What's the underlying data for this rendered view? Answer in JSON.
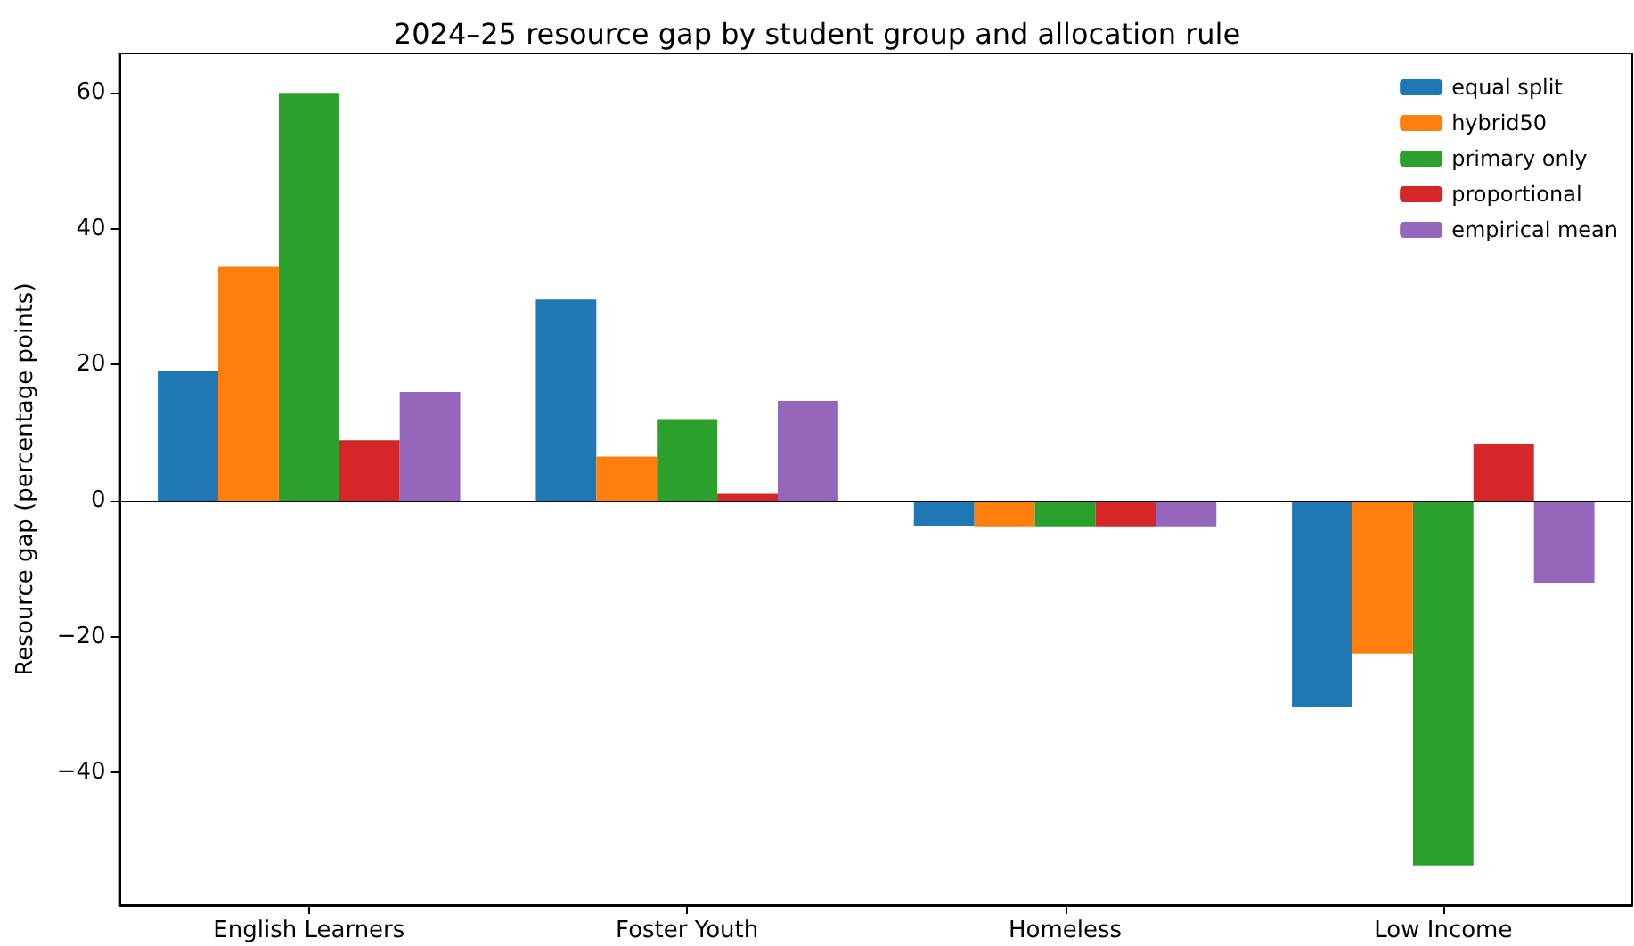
{
  "chart_data": {
    "type": "bar",
    "title": "2024–25 resource gap by student group and allocation rule",
    "ylabel": "Resource gap (percentage points)",
    "categories": [
      "English Learners",
      "Foster Youth",
      "Homeless",
      "Low Income"
    ],
    "series": [
      {
        "name": "equal split",
        "color": "#1f77b4",
        "values": [
          19,
          29.6,
          -3.7,
          -30.4
        ]
      },
      {
        "name": "hybrid50",
        "color": "#ff7f0e",
        "values": [
          34.4,
          6.5,
          -3.9,
          -22.5
        ]
      },
      {
        "name": "primary only",
        "color": "#2ca02c",
        "values": [
          60,
          12,
          -3.9,
          -53.7
        ]
      },
      {
        "name": "proportional",
        "color": "#d62728",
        "values": [
          8.9,
          1,
          -3.9,
          8.4
        ]
      },
      {
        "name": "empirical mean",
        "color": "#9467bd",
        "values": [
          16,
          14.7,
          -3.9,
          -12.1
        ]
      }
    ],
    "ylim": [
      -59.5,
      65.8
    ],
    "yticks": [
      {
        "value": -40,
        "label": "−40"
      },
      {
        "value": -20,
        "label": "−20"
      },
      0,
      20,
      40,
      60
    ],
    "ref_lines": [
      {
        "axis": "y",
        "value": 0,
        "color": "#000000"
      }
    ],
    "grid": false,
    "legend": "top right"
  }
}
